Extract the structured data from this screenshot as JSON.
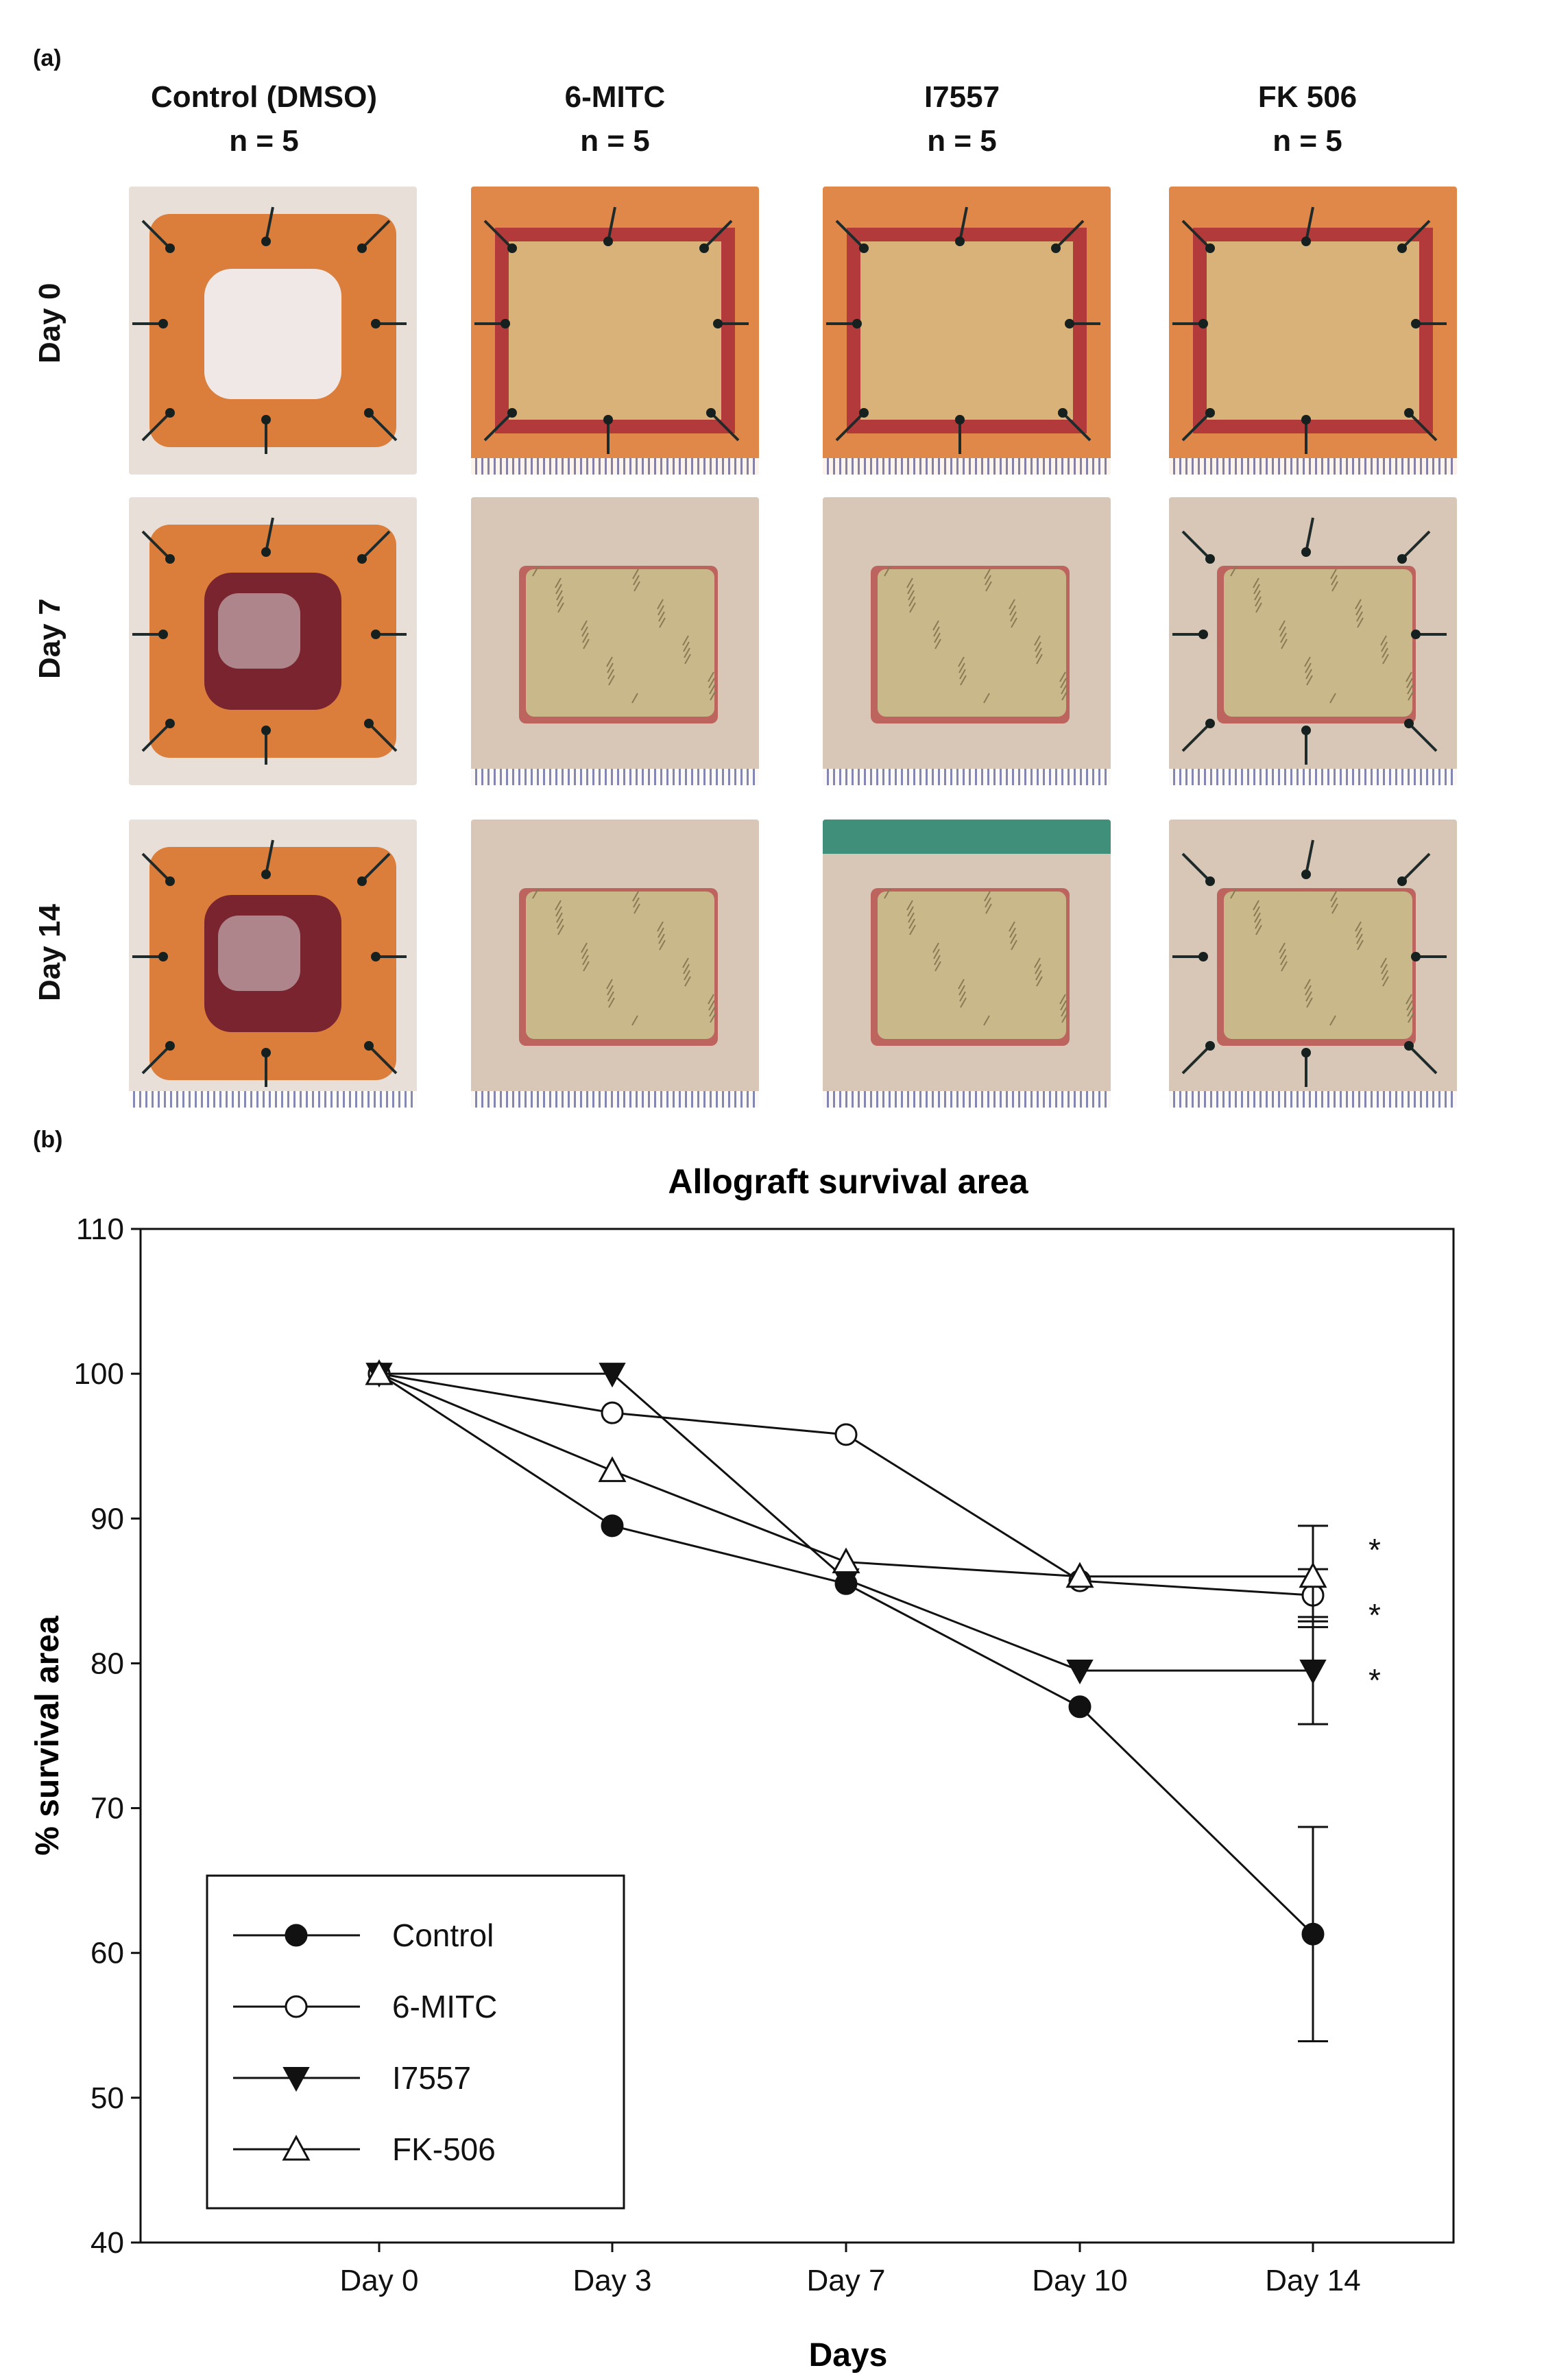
{
  "panel_a": {
    "label": "(a)",
    "columns": [
      {
        "name": "Control (DMSO)",
        "n": "n = 5"
      },
      {
        "name": "6-MITC",
        "n": "n = 5"
      },
      {
        "name": "I7557",
        "n": "n = 5"
      },
      {
        "name": "FK 506",
        "n": "n = 5"
      }
    ],
    "rows": [
      "Day 0",
      "Day 7",
      "Day 14"
    ],
    "colors": {
      "skin": "#d9b27a",
      "wound": "#b23a3a",
      "graft_fur": "#c9b98a",
      "necrotic": "#7a2430",
      "orange_crust": "#d9732a",
      "ruler": "#7a7fb0"
    }
  },
  "panel_b": {
    "label": "(b)"
  },
  "chart_data": {
    "type": "line",
    "title": "Allograft survival area",
    "xlabel": "Days",
    "ylabel": "% survival area",
    "categories": [
      "Day 0",
      "Day 3",
      "Day 7",
      "Day 10",
      "Day 14"
    ],
    "ylim": [
      40,
      110
    ],
    "yticks": [
      40,
      50,
      60,
      70,
      80,
      90,
      100,
      110
    ],
    "grid": false,
    "legend_position": "bottom-left",
    "series": [
      {
        "name": "Control",
        "marker": "filled-circle",
        "values": [
          100,
          89.5,
          85.5,
          77,
          61.3
        ],
        "error": [
          null,
          null,
          null,
          null,
          7.4
        ]
      },
      {
        "name": "6-MITC",
        "marker": "open-circle",
        "values": [
          100,
          97.3,
          95.8,
          85.7,
          84.7
        ],
        "error": [
          null,
          null,
          null,
          null,
          1.8
        ]
      },
      {
        "name": "I7557",
        "marker": "filled-triangle-down",
        "values": [
          100,
          100,
          85.8,
          79.5,
          79.5
        ],
        "error": [
          null,
          null,
          null,
          null,
          3.7
        ]
      },
      {
        "name": "FK-506",
        "marker": "open-triangle-up",
        "values": [
          100,
          93.3,
          87,
          86,
          86
        ],
        "error": [
          null,
          null,
          null,
          null,
          3.5
        ]
      }
    ],
    "annotations": [
      "*",
      "*",
      "*"
    ]
  }
}
